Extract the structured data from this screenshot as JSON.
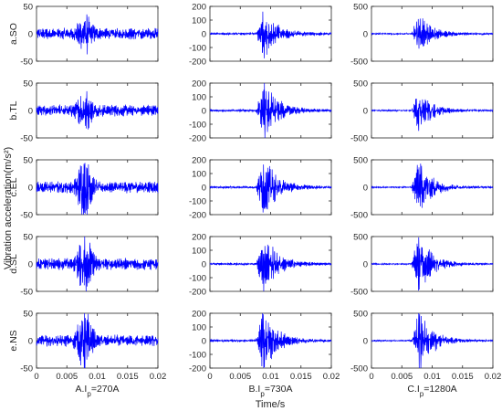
{
  "chart_data": [
    {
      "type": "line",
      "title": "",
      "xlabel": "Time/s",
      "ylabel": "Vibration acceleration(m/s²)",
      "x_ticks": [
        "0",
        "0.005",
        "0.01",
        "0.015",
        "0.02"
      ],
      "xlim": [
        0,
        0.02
      ],
      "grid": false,
      "line_color": "#0000ff",
      "columns": [
        {
          "label_prefix": "A.I",
          "label_sub": "p",
          "label_suffix": "=270A",
          "ylim": [
            -50,
            50
          ],
          "y_ticks": [
            "50",
            "0",
            "-50"
          ]
        },
        {
          "label_prefix": "B.I",
          "label_sub": "p",
          "label_suffix": "=730A",
          "ylim": [
            -200,
            200
          ],
          "y_ticks": [
            "200",
            "100",
            "0",
            "-100",
            "-200"
          ]
        },
        {
          "label_prefix": "C.I",
          "label_sub": "p",
          "label_suffix": "=1280A",
          "ylim": [
            -500,
            500
          ],
          "y_ticks": [
            "500",
            "0",
            "-500"
          ]
        }
      ],
      "rows": [
        "a.SO",
        "b.TL",
        "c.EL",
        "d.SL",
        "e.NS"
      ],
      "series_envelopes": [
        {
          "column": "A.Ip=270A",
          "description": "low-level broadband oscillation with burst near 0.008 s",
          "x_peak": 0.008,
          "baseline_amplitude": 8,
          "peak_amplitude_by_row": [
            30,
            30,
            45,
            45,
            45
          ]
        },
        {
          "column": "B.Ip=730A",
          "description": "quiet before 0.0075 s, burst peaking near 0.0085–0.009 s then decaying",
          "x_peak": 0.0088,
          "baseline_amplitude": 6,
          "peak_amplitude_by_row": [
            140,
            180,
            180,
            180,
            180
          ]
        },
        {
          "column": "C.Ip=1280A",
          "description": "quiet before 0.0073 s, burst peaking near 0.0078 s then decaying",
          "x_peak": 0.0078,
          "baseline_amplitude": 10,
          "peak_amplitude_by_row": [
            300,
            300,
            400,
            420,
            450
          ]
        }
      ]
    }
  ]
}
